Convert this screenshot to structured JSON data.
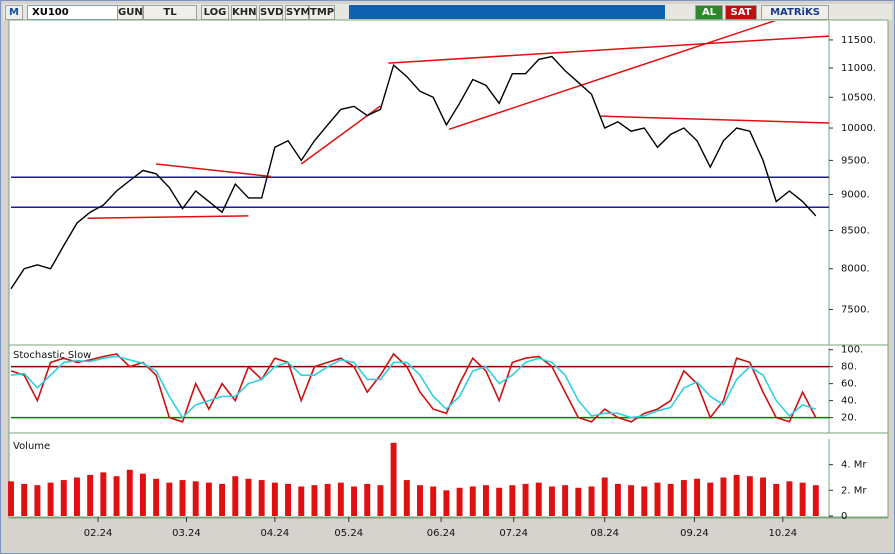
{
  "toolbar": {
    "logo": "M",
    "symbol": "XU100",
    "buttons": [
      "GUN",
      "TL",
      "LOG",
      "KHN",
      "SVD",
      "SYM",
      "TMP"
    ],
    "buy": "AL",
    "sell": "SAT",
    "brand": "MATRiKS"
  },
  "chart_data": [
    {
      "type": "line",
      "log": true,
      "color": "#000000",
      "values": [
        7750,
        8000,
        8050,
        8000,
        8300,
        8600,
        8750,
        8850,
        9050,
        9200,
        9350,
        9300,
        9100,
        8800,
        9050,
        8900,
        8750,
        9150,
        8950,
        8950,
        9700,
        9800,
        9500,
        9800,
        10050,
        10300,
        10350,
        10200,
        10300,
        11050,
        10850,
        10600,
        10500,
        10050,
        10400,
        10800,
        10700,
        10400,
        10900,
        10900,
        11150,
        11200,
        10950,
        10750,
        10550,
        10000,
        10100,
        9950,
        10000,
        9700,
        9900,
        10000,
        9800,
        9400,
        9800,
        10000,
        9950,
        9500,
        8900,
        9050,
        8900,
        8700
      ],
      "xlim": [
        0,
        62
      ],
      "ylim": [
        7100,
        11850
      ],
      "yticks": [
        {
          "value": 7500,
          "label": "7500."
        },
        {
          "value": 8000,
          "label": "8000."
        },
        {
          "value": 8500,
          "label": "8500."
        },
        {
          "value": 9000,
          "label": "9000."
        },
        {
          "value": 9500,
          "label": "9500."
        },
        {
          "value": 10000,
          "label": "10000."
        },
        {
          "value": 10500,
          "label": "10500."
        },
        {
          "value": 11000,
          "label": "11000."
        },
        {
          "value": 11500,
          "label": "11500."
        }
      ],
      "hlines": [
        9250,
        8820
      ],
      "hline_colors": [
        "#1a1aa8",
        "#1a1aa8"
      ],
      "trendlines": [
        [
          5.8,
          8667,
          18.0,
          8700
        ],
        [
          11.0,
          9445,
          19.7,
          9260
        ],
        [
          22.0,
          9445,
          28.0,
          10355
        ],
        [
          28.6,
          11085,
          62,
          11570
        ],
        [
          33.2,
          9980,
          58.3,
          11890
        ],
        [
          44.7,
          10190,
          62,
          10080
        ]
      ],
      "trendline_color": "#e01010"
    },
    {
      "type": "line",
      "title": "Stochastic Slow",
      "series": [
        {
          "color": "#d01010",
          "values": [
            75,
            70,
            40,
            85,
            90,
            85,
            88,
            92,
            95,
            80,
            85,
            70,
            20,
            15,
            60,
            30,
            60,
            40,
            80,
            65,
            90,
            85,
            40,
            80,
            85,
            90,
            80,
            50,
            70,
            95,
            80,
            50,
            30,
            25,
            60,
            90,
            75,
            40,
            85,
            90,
            92,
            80,
            50,
            20,
            15,
            30,
            20,
            15,
            25,
            30,
            40,
            75,
            60,
            20,
            40,
            90,
            85,
            50,
            20,
            15,
            50,
            20
          ]
        },
        {
          "color": "#30d0e0",
          "values": [
            70,
            72,
            55,
            70,
            85,
            87,
            86,
            90,
            92,
            88,
            84,
            75,
            45,
            20,
            35,
            40,
            45,
            45,
            60,
            65,
            80,
            85,
            70,
            70,
            80,
            88,
            85,
            65,
            65,
            85,
            85,
            70,
            45,
            30,
            45,
            75,
            80,
            60,
            70,
            85,
            90,
            85,
            70,
            40,
            22,
            25,
            25,
            20,
            22,
            28,
            32,
            55,
            62,
            45,
            35,
            65,
            80,
            70,
            40,
            22,
            35,
            30
          ]
        }
      ],
      "xlim": [
        0,
        62
      ],
      "ylim": [
        3,
        102
      ],
      "yticks": [
        {
          "value": 20,
          "label": "20."
        },
        {
          "value": 40,
          "label": "40."
        },
        {
          "value": 60,
          "label": "60."
        },
        {
          "value": 80,
          "label": "80."
        },
        {
          "value": 100,
          "label": "100."
        }
      ],
      "hlines": [
        80,
        20
      ],
      "hline_colors": [
        "#8b0000",
        "#008000"
      ]
    },
    {
      "type": "bar",
      "title": "Volume",
      "color": "#e01010",
      "values": [
        2.7,
        2.5,
        2.4,
        2.6,
        2.8,
        3.0,
        3.2,
        3.4,
        3.1,
        3.6,
        3.3,
        2.9,
        2.6,
        2.8,
        2.7,
        2.6,
        2.5,
        3.1,
        2.9,
        2.8,
        2.6,
        2.5,
        2.3,
        2.4,
        2.5,
        2.6,
        2.3,
        2.5,
        2.4,
        5.7,
        2.8,
        2.4,
        2.3,
        2.0,
        2.2,
        2.3,
        2.4,
        2.2,
        2.4,
        2.5,
        2.6,
        2.3,
        2.4,
        2.2,
        2.3,
        3.0,
        2.5,
        2.4,
        2.3,
        2.6,
        2.5,
        2.8,
        2.9,
        2.6,
        3.0,
        3.2,
        3.1,
        3.0,
        2.5,
        2.7,
        2.6,
        2.4
      ],
      "xlim": [
        0,
        62
      ],
      "ylim": [
        0,
        6
      ],
      "yticks": [
        0,
        {
          "value": 2,
          "label": "2. Mr"
        },
        {
          "value": 4,
          "label": "4. Mr"
        }
      ],
      "xticks": [
        {
          "value": 6.6,
          "label": "02.24"
        },
        {
          "value": 13.3,
          "label": "03.24"
        },
        {
          "value": 20,
          "label": "04.24"
        },
        {
          "value": 25.6,
          "label": "05.24"
        },
        {
          "value": 32.6,
          "label": "06.24"
        },
        {
          "value": 38.1,
          "label": "07.24"
        },
        {
          "value": 45,
          "label": "08.24"
        },
        {
          "value": 51.8,
          "label": "09.24"
        },
        {
          "value": 58.5,
          "label": "10.24"
        }
      ]
    }
  ]
}
